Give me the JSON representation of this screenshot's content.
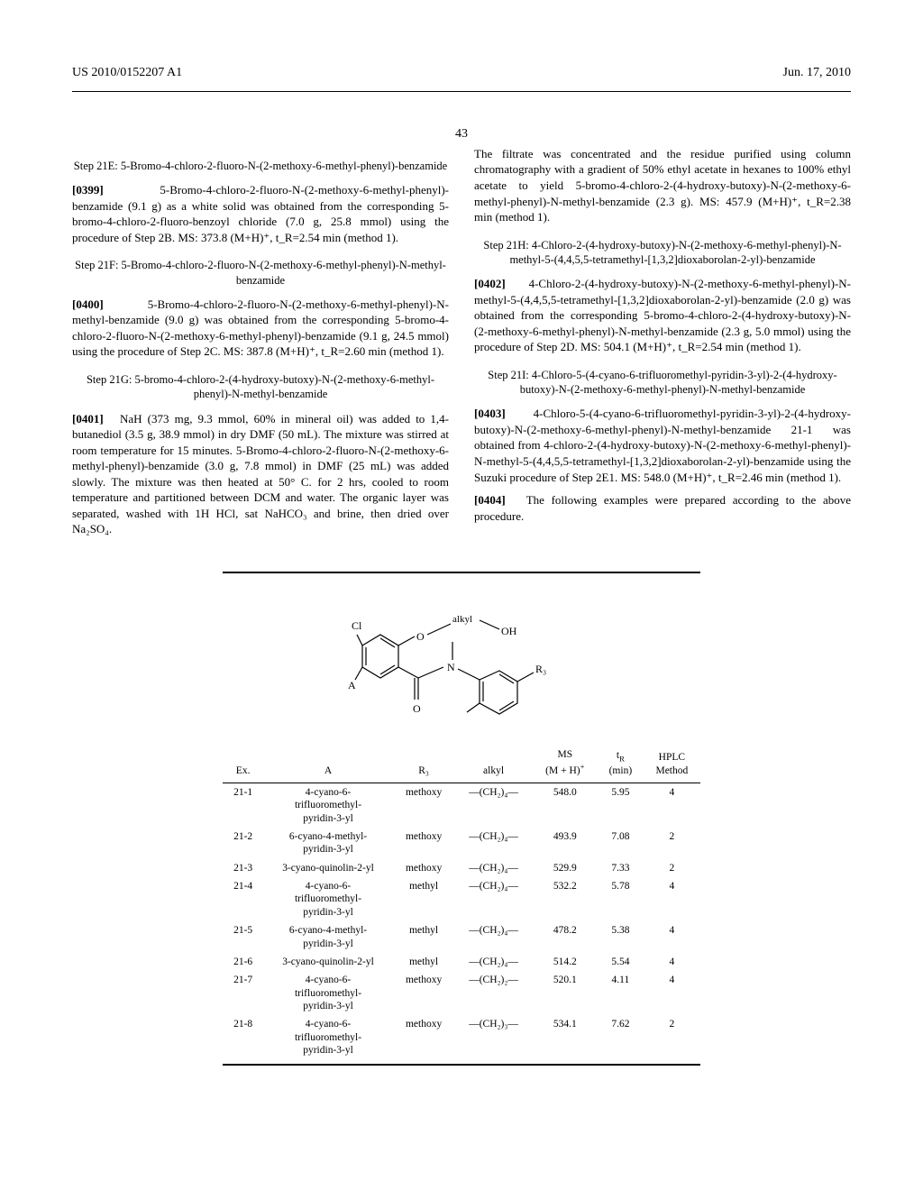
{
  "header": {
    "docNumber": "US 2010/0152207 A1",
    "date": "Jun. 17, 2010",
    "pageNumber": "43"
  },
  "leftCol": {
    "step21E": {
      "title": "Step 21E: 5-Bromo-4-chloro-2-fluoro-N-(2-methoxy-6-methyl-phenyl)-benzamide",
      "paraNum": "[0399]",
      "text": "5-Bromo-4-chloro-2-fluoro-N-(2-methoxy-6-methyl-phenyl)-benzamide (9.1 g) as a white solid was obtained from the corresponding 5-bromo-4-chloro-2-fluoro-benzoyl chloride (7.0 g, 25.8 mmol) using the procedure of Step 2B. MS: 373.8 (M+H)⁺, t_R=2.54 min (method 1)."
    },
    "step21F": {
      "title": "Step 21F: 5-Bromo-4-chloro-2-fluoro-N-(2-methoxy-6-methyl-phenyl)-N-methyl-benzamide",
      "paraNum": "[0400]",
      "text": "5-Bromo-4-chloro-2-fluoro-N-(2-methoxy-6-methyl-phenyl)-N-methyl-benzamide (9.0 g) was obtained from the corresponding 5-bromo-4-chloro-2-fluoro-N-(2-methoxy-6-methyl-phenyl)-benzamide (9.1 g, 24.5 mmol) using the procedure of Step 2C. MS: 387.8 (M+H)⁺, t_R=2.60 min (method 1)."
    },
    "step21G": {
      "title": "Step 21G: 5-bromo-4-chloro-2-(4-hydroxy-butoxy)-N-(2-methoxy-6-methyl-phenyl)-N-methyl-benzamide",
      "paraNum": "[0401]",
      "text": "NaH (373 mg, 9.3 mmol, 60% in mineral oil) was added to 1,4-butanediol (3.5 g, 38.9 mmol) in dry DMF (50 mL). The mixture was stirred at room temperature for 15 minutes. 5-Bromo-4-chloro-2-fluoro-N-(2-methoxy-6-methyl-phenyl)-benzamide (3.0 g, 7.8 mmol) in DMF (25 mL) was added slowly. The mixture was then heated at 50° C. for 2 hrs, cooled to room temperature and partitioned between DCM and water. The organic layer was separated, washed with 1H HCl, sat NaHCO₃ and brine, then dried over Na₂SO₄."
    }
  },
  "rightCol": {
    "continuation": "The filtrate was concentrated and the residue purified using column chromatography with a gradient of 50% ethyl acetate in hexanes to 100% ethyl acetate to yield 5-bromo-4-chloro-2-(4-hydroxy-butoxy)-N-(2-methoxy-6-methyl-phenyl)-N-methyl-benzamide (2.3 g). MS: 457.9 (M+H)⁺, t_R=2.38 min (method 1).",
    "step21H": {
      "title": "Step 21H: 4-Chloro-2-(4-hydroxy-butoxy)-N-(2-methoxy-6-methyl-phenyl)-N-methyl-5-(4,4,5,5-tetramethyl-[1,3,2]dioxaborolan-2-yl)-benzamide",
      "paraNum": "[0402]",
      "text": "4-Chloro-2-(4-hydroxy-butoxy)-N-(2-methoxy-6-methyl-phenyl)-N-methyl-5-(4,4,5,5-tetramethyl-[1,3,2]dioxaborolan-2-yl)-benzamide (2.0 g) was obtained from the corresponding 5-bromo-4-chloro-2-(4-hydroxy-butoxy)-N-(2-methoxy-6-methyl-phenyl)-N-methyl-benzamide (2.3 g, 5.0 mmol) using the procedure of Step 2D. MS: 504.1 (M+H)⁺, t_R=2.54 min (method 1)."
    },
    "step21I": {
      "title": "Step 21I: 4-Chloro-5-(4-cyano-6-trifluoromethyl-pyridin-3-yl)-2-(4-hydroxy-butoxy)-N-(2-methoxy-6-methyl-phenyl)-N-methyl-benzamide",
      "paraNum": "[0403]",
      "text": "4-Chloro-5-(4-cyano-6-trifluoromethyl-pyridin-3-yl)-2-(4-hydroxy-butoxy)-N-(2-methoxy-6-methyl-phenyl)-N-methyl-benzamide 21-1 was obtained from 4-chloro-2-(4-hydroxy-butoxy)-N-(2-methoxy-6-methyl-phenyl)-N-methyl-5-(4,4,5,5-tetramethyl-[1,3,2]dioxaborolan-2-yl)-benzamide using the Suzuki procedure of Step 2E1. MS: 548.0 (M+H)⁺, t_R=2.46 min (method 1)."
    },
    "para0404": {
      "paraNum": "[0404]",
      "text": "The following examples were prepared according to the above procedure."
    }
  },
  "structure": {
    "labels": {
      "Cl": "Cl",
      "A": "A",
      "O": "O",
      "alkyl": "alkyl",
      "OH": "OH",
      "N": "N",
      "R3": "R₃"
    }
  },
  "table": {
    "headers": [
      "Ex.",
      "A",
      "R₃",
      "alkyl",
      "MS (M + H)⁺",
      "t_R (min)",
      "HPLC Method"
    ],
    "rows": [
      {
        "ex": "21-1",
        "a": "4-cyano-6-trifluoromethyl-pyridin-3-yl",
        "r3": "methoxy",
        "alkyl": "—(CH₂)₄—",
        "ms": "548.0",
        "tr": "5.95",
        "method": "4"
      },
      {
        "ex": "21-2",
        "a": "6-cyano-4-methyl-pyridin-3-yl",
        "r3": "methoxy",
        "alkyl": "—(CH₂)₄—",
        "ms": "493.9",
        "tr": "7.08",
        "method": "2"
      },
      {
        "ex": "21-3",
        "a": "3-cyano-quinolin-2-yl",
        "r3": "methoxy",
        "alkyl": "—(CH₂)₄—",
        "ms": "529.9",
        "tr": "7.33",
        "method": "2"
      },
      {
        "ex": "21-4",
        "a": "4-cyano-6-trifluoromethyl-pyridin-3-yl",
        "r3": "methyl",
        "alkyl": "—(CH₂)₄—",
        "ms": "532.2",
        "tr": "5.78",
        "method": "4"
      },
      {
        "ex": "21-5",
        "a": "6-cyano-4-methyl-pyridin-3-yl",
        "r3": "methyl",
        "alkyl": "—(CH₂)₄—",
        "ms": "478.2",
        "tr": "5.38",
        "method": "4"
      },
      {
        "ex": "21-6",
        "a": "3-cyano-quinolin-2-yl",
        "r3": "methyl",
        "alkyl": "—(CH₂)₄—",
        "ms": "514.2",
        "tr": "5.54",
        "method": "4"
      },
      {
        "ex": "21-7",
        "a": "4-cyano-6-trifluoromethyl-pyridin-3-yl",
        "r3": "methoxy",
        "alkyl": "—(CH₂)₂—",
        "ms": "520.1",
        "tr": "4.11",
        "method": "4"
      },
      {
        "ex": "21-8",
        "a": "4-cyano-6-trifluoromethyl-pyridin-3-yl",
        "r3": "methoxy",
        "alkyl": "—(CH₂)₃—",
        "ms": "534.1",
        "tr": "7.62",
        "method": "2"
      }
    ]
  }
}
